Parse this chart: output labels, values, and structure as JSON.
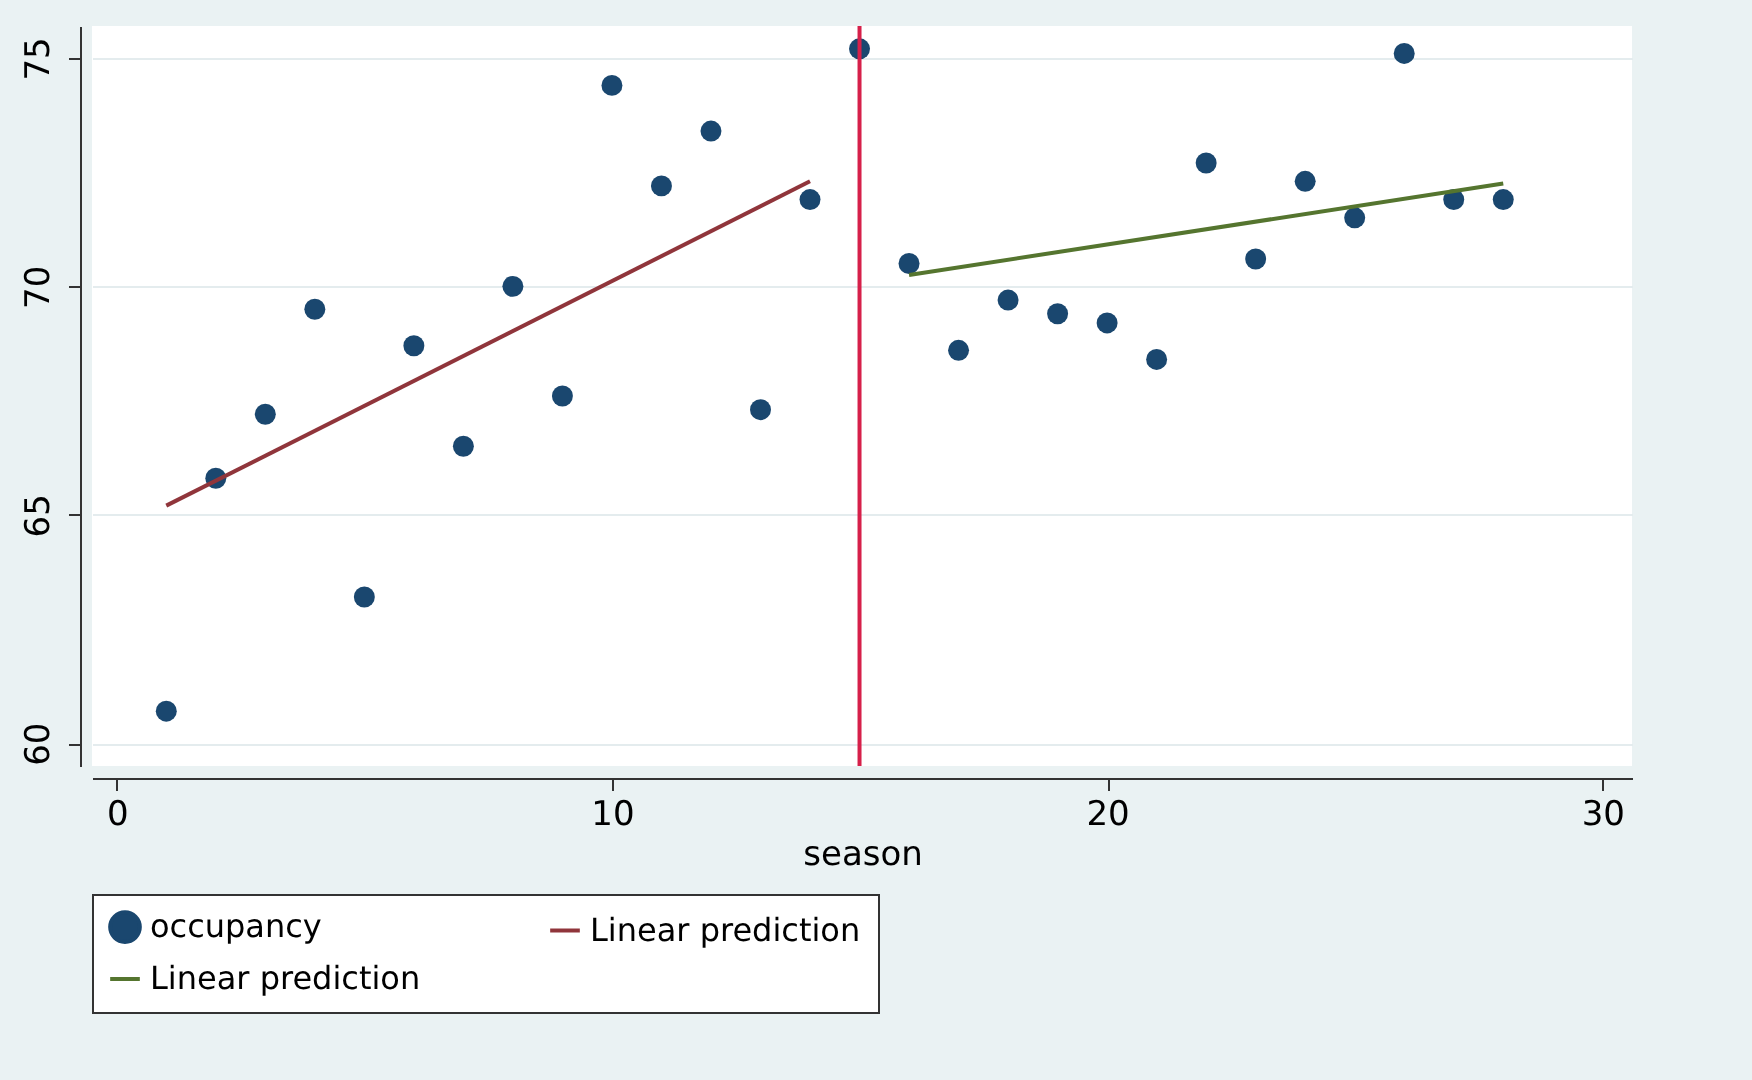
{
  "chart_data": {
    "type": "scatter",
    "xlabel": "season",
    "series": [
      {
        "name": "occupancy",
        "color": "#1a476f",
        "marker": "circle",
        "x": [
          1,
          2,
          3,
          4,
          5,
          6,
          7,
          8,
          9,
          10,
          11,
          12,
          13,
          14,
          15,
          16,
          17,
          18,
          19,
          20,
          21,
          22,
          23,
          24,
          25,
          26,
          27,
          28
        ],
        "values": [
          60.7,
          65.8,
          67.2,
          69.5,
          63.2,
          68.7,
          66.5,
          70.0,
          67.6,
          74.4,
          72.2,
          73.4,
          67.3,
          71.9,
          75.2,
          70.5,
          68.6,
          69.7,
          69.4,
          69.2,
          68.4,
          72.7,
          70.6,
          72.3,
          71.5,
          75.1,
          71.9,
          71.9
        ]
      },
      {
        "name": "Linear prediction",
        "type": "line",
        "color": "#90353b",
        "x": [
          1,
          14
        ],
        "values": [
          65.2,
          72.3
        ]
      },
      {
        "name": "Linear prediction",
        "type": "line",
        "color": "#55752f",
        "x": [
          16,
          28
        ],
        "values": [
          70.25,
          72.25
        ]
      }
    ],
    "xlim": [
      -0.5,
      30.6
    ],
    "xticks": [
      0,
      10,
      20,
      30
    ],
    "ylim": [
      59.5,
      75.7
    ],
    "yticks": [
      60,
      65,
      70,
      75
    ],
    "ref_lines": [
      {
        "axis": "x",
        "value": 15,
        "color": "#d6204a"
      }
    ],
    "grid": "y",
    "legend": "bottom"
  }
}
